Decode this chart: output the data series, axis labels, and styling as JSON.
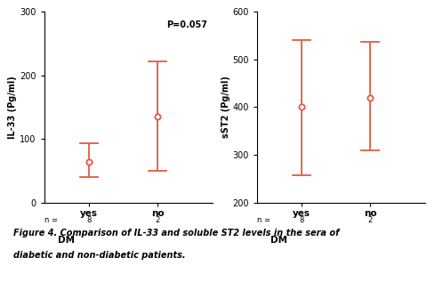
{
  "left": {
    "ylabel": "IL-33 (Pg/ml)",
    "xlabel": "DM",
    "ylim": [
      0,
      300
    ],
    "yticks": [
      0,
      100,
      200,
      300
    ],
    "categories": [
      "yes",
      "no"
    ],
    "x_positions": [
      1,
      2
    ],
    "means": [
      65,
      135
    ],
    "lower": [
      40,
      50
    ],
    "upper": [
      93,
      222
    ],
    "annotation": "P=0.057",
    "color": "#e05c40"
  },
  "right": {
    "ylabel": "sST2 (Pg/ml)",
    "xlabel": "DM",
    "ylim": [
      200,
      600
    ],
    "yticks": [
      200,
      300,
      400,
      500,
      600
    ],
    "categories": [
      "yes",
      "no"
    ],
    "x_positions": [
      1,
      2
    ],
    "means": [
      400,
      420
    ],
    "lower": [
      258,
      310
    ],
    "upper": [
      540,
      537
    ],
    "color": "#e05c40"
  },
  "caption_line1": "Figure 4. Comparison of IL-33 and soluble ST2 levels in the sera of",
  "caption_line2": "diabetic and non-diabetic patients.",
  "figure_bg": "#ffffff"
}
